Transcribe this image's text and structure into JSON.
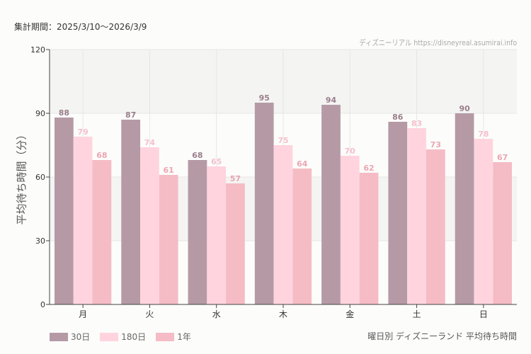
{
  "header": {
    "period": "集計期間：2025/3/10〜2026/3/9",
    "credit": "ディズニーリアル https://disneyreal.asumirai.info"
  },
  "chart_data": {
    "type": "bar",
    "title": "曜日別 ディズニーランド 平均待ち時間",
    "ylabel": "平均待ち時間（分）",
    "xlabel": "",
    "ylim": [
      0,
      120
    ],
    "yticks": [
      0,
      30,
      60,
      90,
      120
    ],
    "categories": [
      "月",
      "火",
      "水",
      "木",
      "金",
      "土",
      "日"
    ],
    "series": [
      {
        "name": "30日",
        "color": "#b59aa6",
        "label_color": "#9b7f8c",
        "values": [
          88,
          87,
          68,
          95,
          94,
          86,
          90
        ]
      },
      {
        "name": "180日",
        "color": "#ffd4de",
        "label_color": "#f6bfcc",
        "values": [
          79,
          74,
          65,
          75,
          70,
          83,
          78
        ]
      },
      {
        "name": "1年",
        "color": "#f5bcc5",
        "label_color": "#eaa6b2",
        "values": [
          68,
          61,
          57,
          64,
          62,
          73,
          67
        ]
      }
    ],
    "grid": true,
    "legend": "bottom-left"
  }
}
